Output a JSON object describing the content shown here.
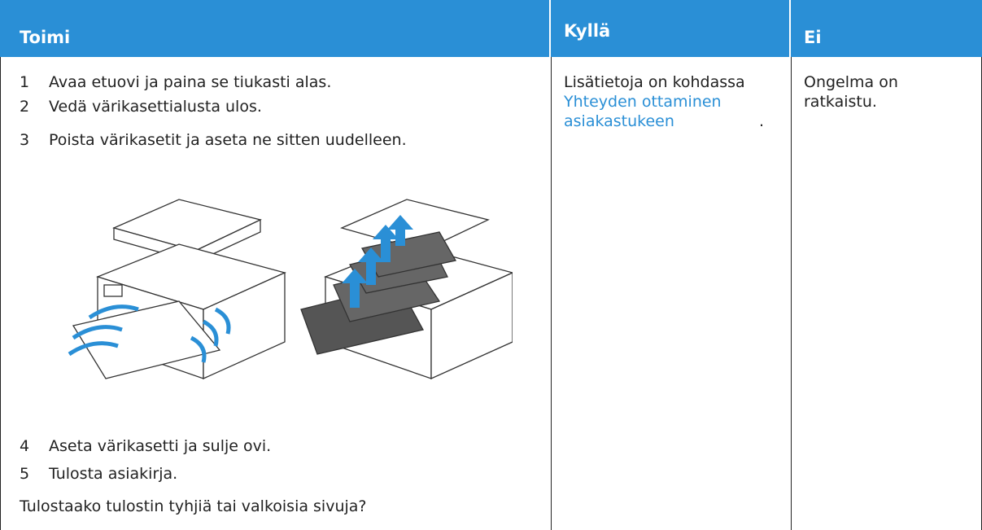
{
  "table": {
    "headers": [
      "Toimi",
      "Kyllä",
      "Ei"
    ],
    "steps": [
      {
        "number": "1",
        "text": "Avaa etuovi ja paina se tiukasti alas."
      },
      {
        "number": "2",
        "text": "Vedä värikasettialusta ulos."
      },
      {
        "number": "3",
        "text": "Poista värikasetit ja aseta ne sitten uudelleen."
      },
      {
        "number": "4",
        "text": "Aseta värikasetti ja sulje ovi."
      },
      {
        "number": "5",
        "text": "Tulosta asiakirja."
      }
    ],
    "question": "Tulostaako tulostin tyhjiä tai valkoisia sivuja?",
    "yes": {
      "text": "Lisätietoja on kohdassa",
      "link": "Yhteyden ottaminen asiakastukeen",
      "end": "."
    },
    "no": "Ongelma on ratkaistu."
  }
}
